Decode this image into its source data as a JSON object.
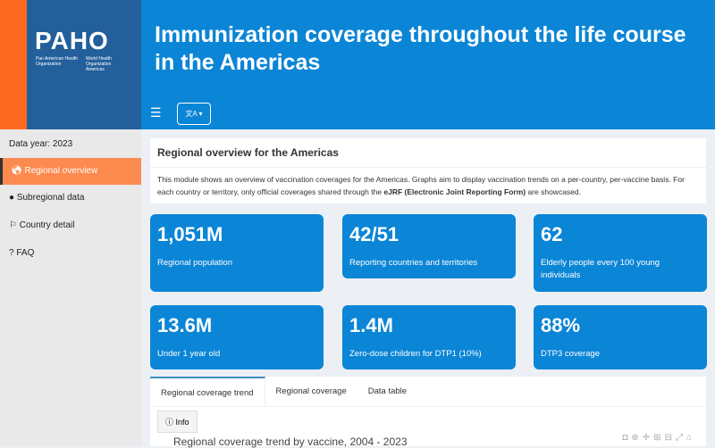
{
  "logo": {
    "name": "PAHO",
    "org1": "Pan American Health Organization",
    "org2": "World Health Organization Americas"
  },
  "header": {
    "title": "Immunization coverage throughout the life course in the Americas",
    "menu_icon": "hamburger-icon",
    "lang_icon": "translate-icon"
  },
  "sidebar": {
    "data_year": "Data year: 2023",
    "items": [
      {
        "label": "Regional overview",
        "icon": "globe-icon"
      },
      {
        "label": "Subregional data",
        "icon": "map-marker-icon"
      },
      {
        "label": "Country detail",
        "icon": "flag-icon"
      },
      {
        "label": "FAQ",
        "icon": "question-circle-icon"
      }
    ]
  },
  "overview": {
    "title": "Regional overview for the Americas",
    "text_a": "This module shows an overview of vaccination coverages for the Americas. Graphs aim to display vaccination trends on a per-country, per-vaccine basis. For each country or territory, only official coverages shared through the ",
    "text_bold": "eJRF (Electronic Joint Reporting Form)",
    "text_b": " are showcased."
  },
  "stats": [
    {
      "value": "1,051M",
      "label": "Regional population"
    },
    {
      "value": "42/51",
      "label": "Reporting countries and territories"
    },
    {
      "value": "62",
      "label": "Elderly people every 100 young individuals"
    },
    {
      "value": "13.6M",
      "label": "Under 1 year old"
    },
    {
      "value": "1.4M",
      "label": "Zero-dose children for DTP1 (10%)"
    },
    {
      "value": "88%",
      "label": "DTP3 coverage"
    }
  ],
  "tabs": [
    "Regional coverage trend",
    "Regional coverage",
    "Data table"
  ],
  "info_label": "Info",
  "chart_title": "Regional coverage trend by vaccine, 2004 - 2023",
  "colors": {
    "accent": "#0b85d6",
    "brand": "#235f9b",
    "orange": "#fd6a1f"
  }
}
